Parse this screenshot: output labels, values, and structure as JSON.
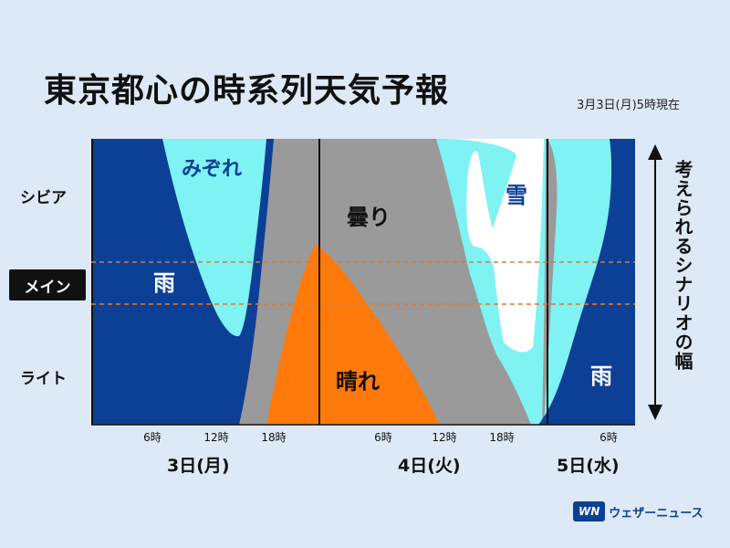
{
  "header": {
    "title": "東京都心の時系列天気予報",
    "as_of": "3月3日(月)5時現在"
  },
  "rows": {
    "severe": "シビア",
    "main": "メイン",
    "light": "ライト"
  },
  "right_axis_label": "考えられるシナリオの幅",
  "brand": {
    "mark": "WN",
    "name": "ウェザーニュース"
  },
  "colors": {
    "rain": "#0c3f96",
    "sleet": "#7ff2f4",
    "cloudy": "#9a9a9a",
    "sunny": "#ff7a0a",
    "snow": "#ffffff",
    "main_band": "#e07a2a"
  },
  "chart_data": {
    "type": "area",
    "title": "東京都心の時系列天気予報",
    "x_ticks": [
      "6時",
      "12時",
      "18時",
      "6時",
      "12時",
      "18時",
      "6時"
    ],
    "days": [
      "3日(月)",
      "4日(火)",
      "5日(水)"
    ],
    "y_categories": [
      "シビア",
      "メイン",
      "ライト"
    ],
    "regions": [
      {
        "name": "雨",
        "label": "雨",
        "color": "#0c3f96"
      },
      {
        "name": "みぞれ",
        "label": "みぞれ",
        "color": "#7ff2f4"
      },
      {
        "name": "曇り",
        "label": "曇り",
        "color": "#9a9a9a"
      },
      {
        "name": "晴れ",
        "label": "晴れ",
        "color": "#ff7a0a"
      },
      {
        "name": "雪",
        "label": "雪",
        "color": "#ffffff"
      },
      {
        "name": "雨_5日",
        "label": "雨",
        "color": "#0c3f96"
      }
    ],
    "grid": false
  }
}
